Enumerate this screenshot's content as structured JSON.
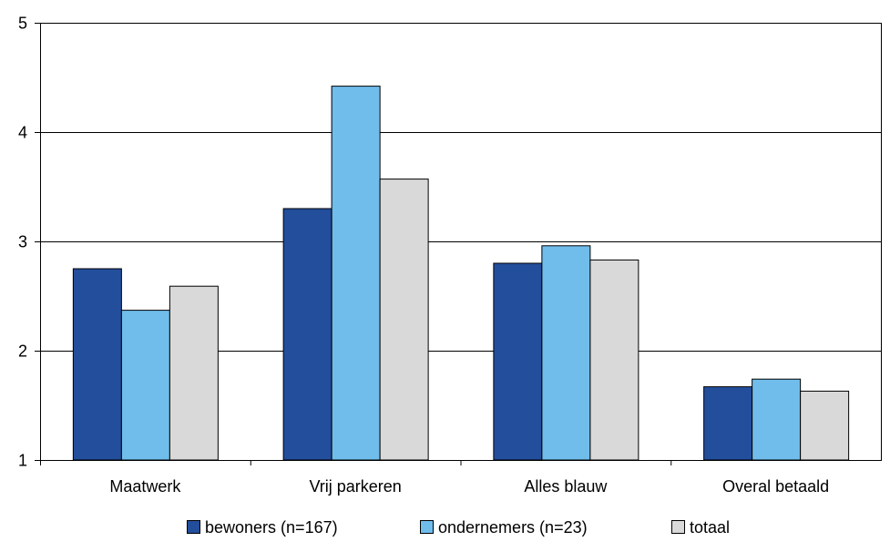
{
  "chart_data": {
    "type": "bar",
    "title": "",
    "xlabel": "",
    "ylabel": "",
    "categories": [
      "Maatwerk",
      "Vrij parkeren",
      "Alles blauw",
      "Overal betaald"
    ],
    "series": [
      {
        "name": "bewoners (n=167)",
        "color": "#234e9b",
        "values": [
          2.75,
          3.3,
          2.8,
          1.67
        ]
      },
      {
        "name": "ondernemers (n=23)",
        "color": "#70bdec",
        "values": [
          2.37,
          4.42,
          2.96,
          1.74
        ]
      },
      {
        "name": "totaal",
        "color": "#d9d9d9",
        "values": [
          2.59,
          3.57,
          2.83,
          1.63
        ]
      }
    ],
    "ylim": [
      1,
      5
    ],
    "yticks": [
      "1",
      "2",
      "3",
      "4",
      "5"
    ],
    "grid": true,
    "legend_position": "bottom"
  }
}
